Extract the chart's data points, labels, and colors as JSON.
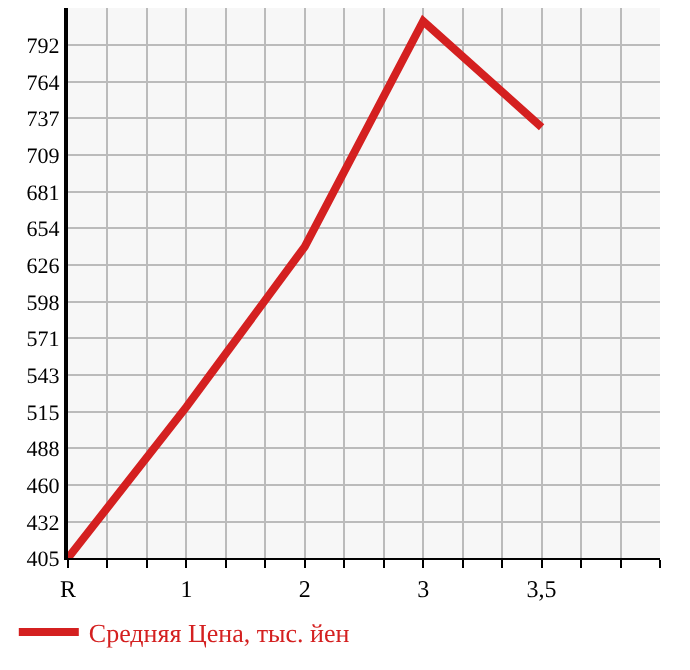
{
  "chart_data": {
    "type": "line",
    "categories": [
      "R",
      "1",
      "2",
      "3",
      "3,5"
    ],
    "series": [
      {
        "name": "Средняя Цена, тыс. йен",
        "color": "#d42020",
        "values": [
          405,
          519,
          640,
          810,
          730
        ]
      }
    ],
    "ylim": [
      405,
      820
    ],
    "yticks": [
      405,
      432,
      460,
      488,
      515,
      543,
      571,
      598,
      626,
      654,
      681,
      709,
      737,
      764,
      792
    ],
    "grid": true,
    "legend": "bottom",
    "marker": "none",
    "line_style": "solid"
  }
}
